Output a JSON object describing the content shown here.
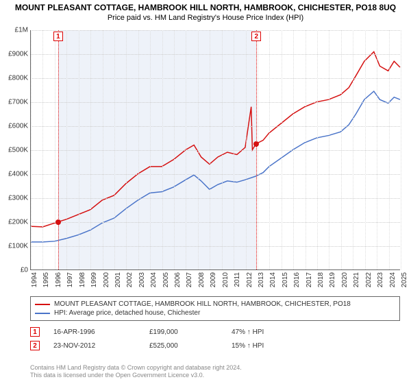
{
  "title": "MOUNT PLEASANT COTTAGE, HAMBROOK HILL NORTH, HAMBROOK, CHICHESTER, PO18 8UQ",
  "subtitle": "Price paid vs. HM Land Registry's House Price Index (HPI)",
  "chart": {
    "type": "line",
    "background_color": "#ffffff",
    "grid_color_y": "#cccccc",
    "grid_color_x": "#dddddd",
    "axis_color": "#666666",
    "ylim": [
      0,
      1000000
    ],
    "ytick_step": 100000,
    "ytick_labels": [
      "£0",
      "£100K",
      "£200K",
      "£300K",
      "£400K",
      "£500K",
      "£600K",
      "£700K",
      "£800K",
      "£900K",
      "£1M"
    ],
    "x_start": 1994,
    "x_end": 2025,
    "x_ticks": [
      1994,
      1995,
      1996,
      1997,
      1998,
      1999,
      2000,
      2001,
      2002,
      2003,
      2004,
      2005,
      2006,
      2007,
      2008,
      2009,
      2010,
      2011,
      2012,
      2013,
      2014,
      2015,
      2016,
      2017,
      2018,
      2019,
      2020,
      2021,
      2022,
      2023,
      2024,
      2025
    ],
    "shade": {
      "start": 1996.29,
      "end": 2012.9,
      "color": "#e8edf7"
    },
    "series": [
      {
        "name": "property",
        "label": "MOUNT PLEASANT COTTAGE, HAMBROOK HILL NORTH, HAMBROOK, CHICHESTER, PO18",
        "color": "#d51010",
        "line_width": 1.5,
        "points": [
          [
            1994.0,
            180000
          ],
          [
            1995.0,
            178000
          ],
          [
            1996.29,
            199000
          ],
          [
            1997.0,
            210000
          ],
          [
            1998.0,
            230000
          ],
          [
            1999.0,
            250000
          ],
          [
            2000.0,
            290000
          ],
          [
            2001.0,
            310000
          ],
          [
            2002.0,
            360000
          ],
          [
            2003.0,
            400000
          ],
          [
            2004.0,
            430000
          ],
          [
            2005.0,
            430000
          ],
          [
            2006.0,
            460000
          ],
          [
            2007.0,
            500000
          ],
          [
            2007.7,
            520000
          ],
          [
            2008.3,
            470000
          ],
          [
            2009.0,
            440000
          ],
          [
            2009.7,
            470000
          ],
          [
            2010.5,
            490000
          ],
          [
            2011.3,
            480000
          ],
          [
            2012.0,
            510000
          ],
          [
            2012.5,
            680000
          ],
          [
            2012.6,
            500000
          ],
          [
            2012.9,
            525000
          ],
          [
            2013.5,
            540000
          ],
          [
            2014.0,
            570000
          ],
          [
            2015.0,
            610000
          ],
          [
            2016.0,
            650000
          ],
          [
            2017.0,
            680000
          ],
          [
            2018.0,
            700000
          ],
          [
            2019.0,
            710000
          ],
          [
            2020.0,
            730000
          ],
          [
            2020.7,
            760000
          ],
          [
            2021.3,
            810000
          ],
          [
            2022.0,
            870000
          ],
          [
            2022.8,
            910000
          ],
          [
            2023.3,
            850000
          ],
          [
            2024.0,
            830000
          ],
          [
            2024.5,
            870000
          ],
          [
            2025.0,
            845000
          ]
        ]
      },
      {
        "name": "hpi",
        "label": "HPI: Average price, detached house, Chichester",
        "color": "#4a74c9",
        "line_width": 1.5,
        "points": [
          [
            1994.0,
            115000
          ],
          [
            1995.0,
            115000
          ],
          [
            1996.0,
            118000
          ],
          [
            1997.0,
            130000
          ],
          [
            1998.0,
            145000
          ],
          [
            1999.0,
            165000
          ],
          [
            2000.0,
            195000
          ],
          [
            2001.0,
            215000
          ],
          [
            2002.0,
            255000
          ],
          [
            2003.0,
            290000
          ],
          [
            2004.0,
            320000
          ],
          [
            2005.0,
            325000
          ],
          [
            2006.0,
            345000
          ],
          [
            2007.0,
            375000
          ],
          [
            2007.7,
            395000
          ],
          [
            2008.3,
            370000
          ],
          [
            2009.0,
            335000
          ],
          [
            2009.7,
            355000
          ],
          [
            2010.5,
            370000
          ],
          [
            2011.3,
            365000
          ],
          [
            2012.0,
            375000
          ],
          [
            2012.9,
            390000
          ],
          [
            2013.5,
            405000
          ],
          [
            2014.0,
            430000
          ],
          [
            2015.0,
            465000
          ],
          [
            2016.0,
            500000
          ],
          [
            2017.0,
            530000
          ],
          [
            2018.0,
            550000
          ],
          [
            2019.0,
            560000
          ],
          [
            2020.0,
            575000
          ],
          [
            2020.7,
            605000
          ],
          [
            2021.3,
            650000
          ],
          [
            2022.0,
            710000
          ],
          [
            2022.8,
            745000
          ],
          [
            2023.3,
            710000
          ],
          [
            2024.0,
            695000
          ],
          [
            2024.5,
            720000
          ],
          [
            2025.0,
            710000
          ]
        ]
      }
    ],
    "markers": [
      {
        "n": "1",
        "x": 1996.29,
        "y": 199000,
        "color": "#d51010"
      },
      {
        "n": "2",
        "x": 2012.9,
        "y": 525000,
        "color": "#d51010"
      }
    ]
  },
  "sales": [
    {
      "n": "1",
      "date": "16-APR-1996",
      "price": "£199,000",
      "diff": "47% ↑ HPI"
    },
    {
      "n": "2",
      "date": "23-NOV-2012",
      "price": "£525,000",
      "diff": "15% ↑ HPI"
    }
  ],
  "footer": {
    "line1": "Contains HM Land Registry data © Crown copyright and database right 2024.",
    "line2": "This data is licensed under the Open Government Licence v3.0."
  }
}
